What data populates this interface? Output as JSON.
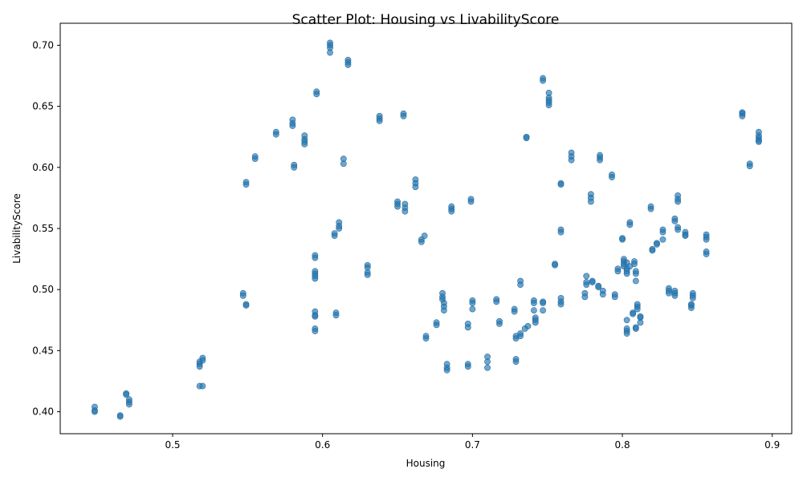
{
  "chart_data": {
    "type": "scatter",
    "title": "Scatter Plot: Housing vs LivabilityScore",
    "xlabel": "Housing",
    "ylabel": "LivabilityScore",
    "xlim": [
      0.425,
      0.913
    ],
    "ylim": [
      0.382,
      0.718
    ],
    "xticks": [
      0.5,
      0.6,
      0.7,
      0.8,
      0.9
    ],
    "xtick_labels": [
      "0.5",
      "0.6",
      "0.7",
      "0.8",
      "0.9"
    ],
    "yticks": [
      0.4,
      0.45,
      0.5,
      0.55,
      0.6,
      0.65,
      0.7
    ],
    "ytick_labels": [
      "0.40",
      "0.45",
      "0.50",
      "0.55",
      "0.60",
      "0.65",
      "0.70"
    ],
    "grid": false,
    "marker_color": "#1f77b4",
    "points": [
      {
        "x": 0.448,
        "y": 0.404
      },
      {
        "x": 0.448,
        "y": 0.401
      },
      {
        "x": 0.448,
        "y": 0.4
      },
      {
        "x": 0.465,
        "y": 0.397
      },
      {
        "x": 0.465,
        "y": 0.396
      },
      {
        "x": 0.469,
        "y": 0.415
      },
      {
        "x": 0.469,
        "y": 0.414
      },
      {
        "x": 0.471,
        "y": 0.41
      },
      {
        "x": 0.471,
        "y": 0.408
      },
      {
        "x": 0.471,
        "y": 0.406
      },
      {
        "x": 0.518,
        "y": 0.441
      },
      {
        "x": 0.518,
        "y": 0.439
      },
      {
        "x": 0.518,
        "y": 0.437
      },
      {
        "x": 0.52,
        "y": 0.444
      },
      {
        "x": 0.52,
        "y": 0.442
      },
      {
        "x": 0.518,
        "y": 0.421
      },
      {
        "x": 0.52,
        "y": 0.421
      },
      {
        "x": 0.547,
        "y": 0.497
      },
      {
        "x": 0.547,
        "y": 0.495
      },
      {
        "x": 0.549,
        "y": 0.488
      },
      {
        "x": 0.549,
        "y": 0.487
      },
      {
        "x": 0.549,
        "y": 0.588
      },
      {
        "x": 0.549,
        "y": 0.586
      },
      {
        "x": 0.555,
        "y": 0.609
      },
      {
        "x": 0.555,
        "y": 0.607
      },
      {
        "x": 0.569,
        "y": 0.629
      },
      {
        "x": 0.569,
        "y": 0.627
      },
      {
        "x": 0.58,
        "y": 0.639
      },
      {
        "x": 0.58,
        "y": 0.636
      },
      {
        "x": 0.58,
        "y": 0.634
      },
      {
        "x": 0.581,
        "y": 0.602
      },
      {
        "x": 0.581,
        "y": 0.6
      },
      {
        "x": 0.588,
        "y": 0.626
      },
      {
        "x": 0.588,
        "y": 0.623
      },
      {
        "x": 0.588,
        "y": 0.621
      },
      {
        "x": 0.588,
        "y": 0.619
      },
      {
        "x": 0.595,
        "y": 0.528
      },
      {
        "x": 0.595,
        "y": 0.526
      },
      {
        "x": 0.595,
        "y": 0.515
      },
      {
        "x": 0.595,
        "y": 0.513
      },
      {
        "x": 0.595,
        "y": 0.511
      },
      {
        "x": 0.595,
        "y": 0.509
      },
      {
        "x": 0.595,
        "y": 0.482
      },
      {
        "x": 0.595,
        "y": 0.479
      },
      {
        "x": 0.595,
        "y": 0.478
      },
      {
        "x": 0.595,
        "y": 0.468
      },
      {
        "x": 0.595,
        "y": 0.466
      },
      {
        "x": 0.596,
        "y": 0.662
      },
      {
        "x": 0.596,
        "y": 0.66
      },
      {
        "x": 0.605,
        "y": 0.702
      },
      {
        "x": 0.605,
        "y": 0.7
      },
      {
        "x": 0.605,
        "y": 0.698
      },
      {
        "x": 0.605,
        "y": 0.694
      },
      {
        "x": 0.608,
        "y": 0.546
      },
      {
        "x": 0.608,
        "y": 0.544
      },
      {
        "x": 0.609,
        "y": 0.481
      },
      {
        "x": 0.609,
        "y": 0.479
      },
      {
        "x": 0.611,
        "y": 0.555
      },
      {
        "x": 0.611,
        "y": 0.552
      },
      {
        "x": 0.611,
        "y": 0.55
      },
      {
        "x": 0.614,
        "y": 0.607
      },
      {
        "x": 0.614,
        "y": 0.603
      },
      {
        "x": 0.617,
        "y": 0.688
      },
      {
        "x": 0.617,
        "y": 0.686
      },
      {
        "x": 0.617,
        "y": 0.684
      },
      {
        "x": 0.63,
        "y": 0.52
      },
      {
        "x": 0.63,
        "y": 0.518
      },
      {
        "x": 0.63,
        "y": 0.514
      },
      {
        "x": 0.63,
        "y": 0.512
      },
      {
        "x": 0.638,
        "y": 0.642
      },
      {
        "x": 0.638,
        "y": 0.64
      },
      {
        "x": 0.638,
        "y": 0.638
      },
      {
        "x": 0.65,
        "y": 0.572
      },
      {
        "x": 0.65,
        "y": 0.57
      },
      {
        "x": 0.65,
        "y": 0.568
      },
      {
        "x": 0.654,
        "y": 0.644
      },
      {
        "x": 0.654,
        "y": 0.642
      },
      {
        "x": 0.655,
        "y": 0.57
      },
      {
        "x": 0.655,
        "y": 0.567
      },
      {
        "x": 0.655,
        "y": 0.564
      },
      {
        "x": 0.662,
        "y": 0.59
      },
      {
        "x": 0.662,
        "y": 0.587
      },
      {
        "x": 0.662,
        "y": 0.584
      },
      {
        "x": 0.666,
        "y": 0.541
      },
      {
        "x": 0.666,
        "y": 0.539
      },
      {
        "x": 0.668,
        "y": 0.544
      },
      {
        "x": 0.669,
        "y": 0.462
      },
      {
        "x": 0.669,
        "y": 0.46
      },
      {
        "x": 0.676,
        "y": 0.473
      },
      {
        "x": 0.676,
        "y": 0.471
      },
      {
        "x": 0.68,
        "y": 0.497
      },
      {
        "x": 0.68,
        "y": 0.494
      },
      {
        "x": 0.68,
        "y": 0.492
      },
      {
        "x": 0.681,
        "y": 0.489
      },
      {
        "x": 0.681,
        "y": 0.486
      },
      {
        "x": 0.681,
        "y": 0.483
      },
      {
        "x": 0.683,
        "y": 0.439
      },
      {
        "x": 0.683,
        "y": 0.436
      },
      {
        "x": 0.683,
        "y": 0.434
      },
      {
        "x": 0.686,
        "y": 0.568
      },
      {
        "x": 0.686,
        "y": 0.566
      },
      {
        "x": 0.686,
        "y": 0.564
      },
      {
        "x": 0.697,
        "y": 0.472
      },
      {
        "x": 0.697,
        "y": 0.469
      },
      {
        "x": 0.697,
        "y": 0.439
      },
      {
        "x": 0.697,
        "y": 0.437
      },
      {
        "x": 0.699,
        "y": 0.574
      },
      {
        "x": 0.699,
        "y": 0.572
      },
      {
        "x": 0.7,
        "y": 0.491
      },
      {
        "x": 0.7,
        "y": 0.489
      },
      {
        "x": 0.7,
        "y": 0.484
      },
      {
        "x": 0.71,
        "y": 0.445
      },
      {
        "x": 0.71,
        "y": 0.441
      },
      {
        "x": 0.71,
        "y": 0.436
      },
      {
        "x": 0.716,
        "y": 0.492
      },
      {
        "x": 0.716,
        "y": 0.49
      },
      {
        "x": 0.718,
        "y": 0.474
      },
      {
        "x": 0.718,
        "y": 0.472
      },
      {
        "x": 0.728,
        "y": 0.484
      },
      {
        "x": 0.728,
        "y": 0.482
      },
      {
        "x": 0.729,
        "y": 0.462
      },
      {
        "x": 0.729,
        "y": 0.46
      },
      {
        "x": 0.729,
        "y": 0.443
      },
      {
        "x": 0.729,
        "y": 0.441
      },
      {
        "x": 0.732,
        "y": 0.507
      },
      {
        "x": 0.732,
        "y": 0.504
      },
      {
        "x": 0.732,
        "y": 0.464
      },
      {
        "x": 0.732,
        "y": 0.462
      },
      {
        "x": 0.735,
        "y": 0.468
      },
      {
        "x": 0.737,
        "y": 0.47
      },
      {
        "x": 0.736,
        "y": 0.625
      },
      {
        "x": 0.736,
        "y": 0.624
      },
      {
        "x": 0.741,
        "y": 0.491
      },
      {
        "x": 0.741,
        "y": 0.489
      },
      {
        "x": 0.741,
        "y": 0.483
      },
      {
        "x": 0.742,
        "y": 0.477
      },
      {
        "x": 0.742,
        "y": 0.475
      },
      {
        "x": 0.742,
        "y": 0.473
      },
      {
        "x": 0.747,
        "y": 0.49
      },
      {
        "x": 0.747,
        "y": 0.489
      },
      {
        "x": 0.747,
        "y": 0.483
      },
      {
        "x": 0.747,
        "y": 0.673
      },
      {
        "x": 0.747,
        "y": 0.671
      },
      {
        "x": 0.751,
        "y": 0.661
      },
      {
        "x": 0.751,
        "y": 0.657
      },
      {
        "x": 0.751,
        "y": 0.655
      },
      {
        "x": 0.751,
        "y": 0.653
      },
      {
        "x": 0.751,
        "y": 0.651
      },
      {
        "x": 0.755,
        "y": 0.521
      },
      {
        "x": 0.755,
        "y": 0.52
      },
      {
        "x": 0.759,
        "y": 0.587
      },
      {
        "x": 0.759,
        "y": 0.586
      },
      {
        "x": 0.759,
        "y": 0.549
      },
      {
        "x": 0.759,
        "y": 0.547
      },
      {
        "x": 0.759,
        "y": 0.493
      },
      {
        "x": 0.759,
        "y": 0.49
      },
      {
        "x": 0.759,
        "y": 0.488
      },
      {
        "x": 0.766,
        "y": 0.612
      },
      {
        "x": 0.766,
        "y": 0.609
      },
      {
        "x": 0.766,
        "y": 0.606
      },
      {
        "x": 0.775,
        "y": 0.497
      },
      {
        "x": 0.775,
        "y": 0.494
      },
      {
        "x": 0.776,
        "y": 0.511
      },
      {
        "x": 0.776,
        "y": 0.506
      },
      {
        "x": 0.776,
        "y": 0.504
      },
      {
        "x": 0.779,
        "y": 0.578
      },
      {
        "x": 0.779,
        "y": 0.575
      },
      {
        "x": 0.779,
        "y": 0.572
      },
      {
        "x": 0.78,
        "y": 0.507
      },
      {
        "x": 0.78,
        "y": 0.506
      },
      {
        "x": 0.784,
        "y": 0.503
      },
      {
        "x": 0.784,
        "y": 0.502
      },
      {
        "x": 0.785,
        "y": 0.61
      },
      {
        "x": 0.785,
        "y": 0.608
      },
      {
        "x": 0.785,
        "y": 0.606
      },
      {
        "x": 0.787,
        "y": 0.499
      },
      {
        "x": 0.787,
        "y": 0.496
      },
      {
        "x": 0.793,
        "y": 0.594
      },
      {
        "x": 0.793,
        "y": 0.592
      },
      {
        "x": 0.795,
        "y": 0.496
      },
      {
        "x": 0.795,
        "y": 0.494
      },
      {
        "x": 0.797,
        "y": 0.517
      },
      {
        "x": 0.797,
        "y": 0.515
      },
      {
        "x": 0.8,
        "y": 0.542
      },
      {
        "x": 0.8,
        "y": 0.541
      },
      {
        "x": 0.801,
        "y": 0.525
      },
      {
        "x": 0.801,
        "y": 0.523
      },
      {
        "x": 0.801,
        "y": 0.521
      },
      {
        "x": 0.801,
        "y": 0.519
      },
      {
        "x": 0.803,
        "y": 0.522
      },
      {
        "x": 0.803,
        "y": 0.517
      },
      {
        "x": 0.803,
        "y": 0.515
      },
      {
        "x": 0.803,
        "y": 0.513
      },
      {
        "x": 0.803,
        "y": 0.475
      },
      {
        "x": 0.803,
        "y": 0.468
      },
      {
        "x": 0.803,
        "y": 0.466
      },
      {
        "x": 0.803,
        "y": 0.464
      },
      {
        "x": 0.805,
        "y": 0.555
      },
      {
        "x": 0.805,
        "y": 0.553
      },
      {
        "x": 0.805,
        "y": 0.519
      },
      {
        "x": 0.807,
        "y": 0.481
      },
      {
        "x": 0.807,
        "y": 0.48
      },
      {
        "x": 0.808,
        "y": 0.523
      },
      {
        "x": 0.808,
        "y": 0.521
      },
      {
        "x": 0.809,
        "y": 0.515
      },
      {
        "x": 0.809,
        "y": 0.513
      },
      {
        "x": 0.809,
        "y": 0.507
      },
      {
        "x": 0.809,
        "y": 0.469
      },
      {
        "x": 0.809,
        "y": 0.468
      },
      {
        "x": 0.81,
        "y": 0.488
      },
      {
        "x": 0.81,
        "y": 0.486
      },
      {
        "x": 0.81,
        "y": 0.484
      },
      {
        "x": 0.812,
        "y": 0.478
      },
      {
        "x": 0.812,
        "y": 0.477
      },
      {
        "x": 0.812,
        "y": 0.473
      },
      {
        "x": 0.819,
        "y": 0.568
      },
      {
        "x": 0.819,
        "y": 0.566
      },
      {
        "x": 0.82,
        "y": 0.533
      },
      {
        "x": 0.82,
        "y": 0.532
      },
      {
        "x": 0.823,
        "y": 0.538
      },
      {
        "x": 0.823,
        "y": 0.537
      },
      {
        "x": 0.827,
        "y": 0.549
      },
      {
        "x": 0.827,
        "y": 0.547
      },
      {
        "x": 0.827,
        "y": 0.541
      },
      {
        "x": 0.831,
        "y": 0.501
      },
      {
        "x": 0.831,
        "y": 0.499
      },
      {
        "x": 0.831,
        "y": 0.497
      },
      {
        "x": 0.835,
        "y": 0.558
      },
      {
        "x": 0.835,
        "y": 0.556
      },
      {
        "x": 0.835,
        "y": 0.499
      },
      {
        "x": 0.835,
        "y": 0.497
      },
      {
        "x": 0.835,
        "y": 0.495
      },
      {
        "x": 0.837,
        "y": 0.577
      },
      {
        "x": 0.837,
        "y": 0.574
      },
      {
        "x": 0.837,
        "y": 0.572
      },
      {
        "x": 0.837,
        "y": 0.551
      },
      {
        "x": 0.837,
        "y": 0.549
      },
      {
        "x": 0.842,
        "y": 0.547
      },
      {
        "x": 0.842,
        "y": 0.545
      },
      {
        "x": 0.842,
        "y": 0.544
      },
      {
        "x": 0.846,
        "y": 0.488
      },
      {
        "x": 0.846,
        "y": 0.487
      },
      {
        "x": 0.846,
        "y": 0.485
      },
      {
        "x": 0.847,
        "y": 0.497
      },
      {
        "x": 0.847,
        "y": 0.495
      },
      {
        "x": 0.847,
        "y": 0.493
      },
      {
        "x": 0.856,
        "y": 0.545
      },
      {
        "x": 0.856,
        "y": 0.543
      },
      {
        "x": 0.856,
        "y": 0.541
      },
      {
        "x": 0.856,
        "y": 0.531
      },
      {
        "x": 0.856,
        "y": 0.529
      },
      {
        "x": 0.88,
        "y": 0.645
      },
      {
        "x": 0.88,
        "y": 0.644
      },
      {
        "x": 0.88,
        "y": 0.642
      },
      {
        "x": 0.885,
        "y": 0.603
      },
      {
        "x": 0.885,
        "y": 0.601
      },
      {
        "x": 0.891,
        "y": 0.629
      },
      {
        "x": 0.891,
        "y": 0.626
      },
      {
        "x": 0.891,
        "y": 0.624
      },
      {
        "x": 0.891,
        "y": 0.622
      },
      {
        "x": 0.891,
        "y": 0.621
      }
    ]
  }
}
